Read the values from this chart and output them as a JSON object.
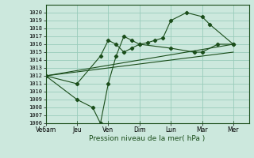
{
  "title": "",
  "xlabel": "Pression niveau de la mer( hPa )",
  "ylabel": "",
  "background_color": "#cce8dd",
  "grid_color": "#99ccbb",
  "line_color": "#1a4d1a",
  "ylim": [
    1006,
    1021
  ],
  "yticks": [
    1006,
    1007,
    1008,
    1009,
    1010,
    1011,
    1012,
    1013,
    1014,
    1015,
    1016,
    1017,
    1018,
    1019,
    1020
  ],
  "xtick_labels": [
    "Ve6am",
    "Jeu",
    "Ven",
    "Dim",
    "Lun",
    "Mar",
    "Mer"
  ],
  "xtick_positions": [
    0,
    2,
    4,
    6,
    8,
    10,
    12
  ],
  "xlim": [
    0,
    13
  ],
  "line1": {
    "x": [
      0,
      2,
      3.5,
      4,
      4.5,
      5,
      5.5,
      6,
      6.5,
      7,
      7.5,
      8,
      9,
      10,
      10.5,
      12
    ],
    "y": [
      1012,
      1011,
      1014.5,
      1016.5,
      1016,
      1015,
      1015.5,
      1016,
      1016.2,
      1016.5,
      1016.8,
      1019,
      1020,
      1019.5,
      1018.5,
      1016
    ]
  },
  "line2": {
    "x": [
      0,
      2,
      3,
      3.5,
      4,
      4.5,
      5,
      5.5,
      6,
      8,
      9.5,
      10,
      11,
      12
    ],
    "y": [
      1012,
      1009,
      1008,
      1006,
      1011,
      1014.5,
      1017,
      1016.5,
      1016,
      1015.5,
      1015,
      1015,
      1016,
      1016
    ]
  },
  "line3_x": [
    0,
    12
  ],
  "line3_y": [
    1012,
    1016
  ],
  "line4_x": [
    0,
    12
  ],
  "line4_y": [
    1012,
    1015
  ]
}
